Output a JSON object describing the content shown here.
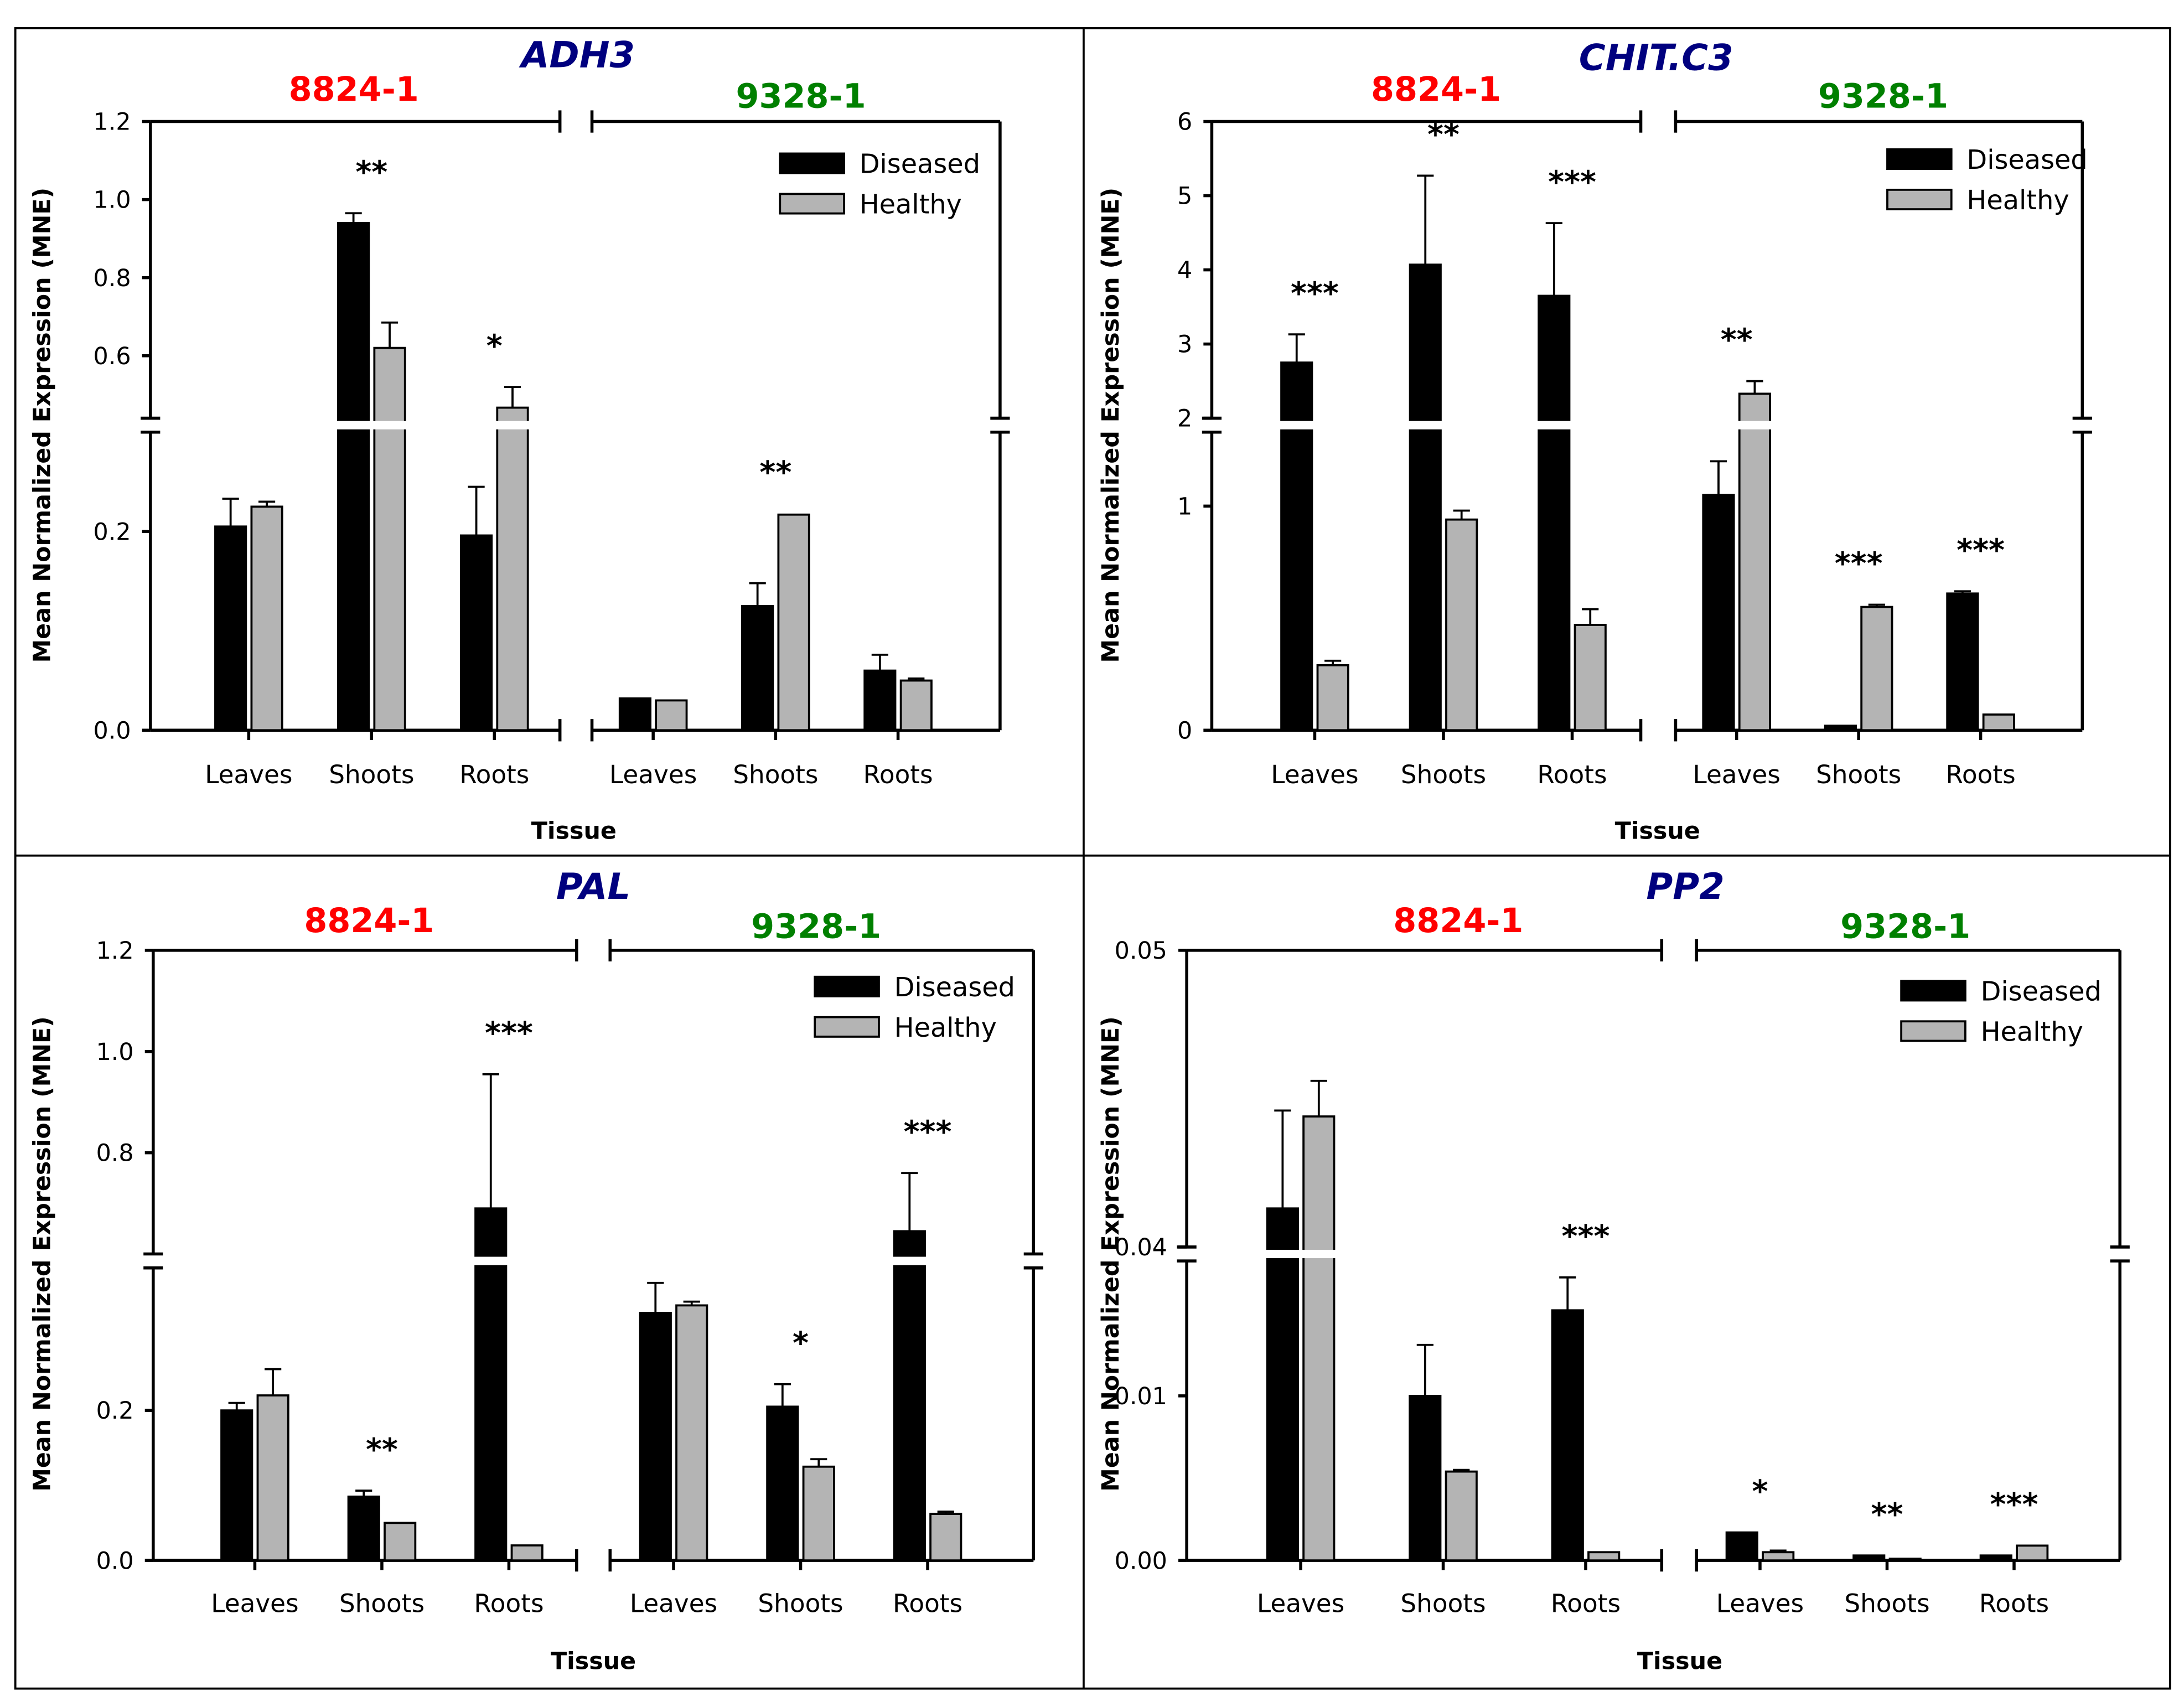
{
  "colors": {
    "diseased": "#000000",
    "healthy": "#b4b4b4",
    "title": "#00007f",
    "group_8824": "#ff0000",
    "group_9328": "#008000"
  },
  "chart_data": [
    {
      "type": "bar",
      "title": "ADH3",
      "ylabel": "Mean Normalized Expression (MNE)",
      "xlabel": "Tissue",
      "groups": [
        {
          "name": "8824-1"
        },
        {
          "name": "9328-1"
        }
      ],
      "categories": [
        "Leaves",
        "Shoots",
        "Roots"
      ],
      "legend": [
        "Diseased",
        "Healthy"
      ],
      "legend_position": "top-right",
      "y_break": {
        "lower": [
          0,
          0.3
        ],
        "upper": [
          0.44,
          1.2
        ]
      },
      "yticks_lower": [
        "0.0",
        "0.2"
      ],
      "yticks_upper": [
        "0.6",
        "0.8",
        "1.0",
        "1.2"
      ],
      "series": [
        {
          "name": "Diseased",
          "values": [
            [
              0.205,
              0.94,
              0.196
            ],
            [
              0.032,
              0.125,
              0.06
            ]
          ],
          "err_top": [
            [
              0.233,
              0.965,
              0.245
            ],
            [
              0.033,
              0.148,
              0.076
            ]
          ]
        },
        {
          "name": "Healthy",
          "values": [
            [
              0.225,
              0.62,
              0.467
            ],
            [
              0.03,
              0.217,
              0.05
            ]
          ],
          "err_top": [
            [
              0.23,
              0.685,
              0.52
            ],
            [
              0.031,
              0.218,
              0.052
            ]
          ]
        }
      ],
      "significance": [
        [
          "",
          "**",
          "*"
        ],
        [
          "",
          "**",
          ""
        ]
      ]
    },
    {
      "type": "bar",
      "title": "CHIT.C3",
      "ylabel": "Mean Normalized Expression (MNE)",
      "xlabel": "Tissue",
      "groups": [
        {
          "name": "8824-1"
        },
        {
          "name": "9328-1"
        }
      ],
      "categories": [
        "Leaves",
        "Shoots",
        "Roots"
      ],
      "legend": [
        "Diseased",
        "Healthy"
      ],
      "legend_position": "top-right",
      "y_break": {
        "lower": [
          0,
          1.33
        ],
        "upper": [
          2,
          6
        ]
      },
      "yticks_lower": [
        "0",
        "1"
      ],
      "yticks_upper": [
        "2",
        "3",
        "4",
        "5",
        "6"
      ],
      "series": [
        {
          "name": "Diseased",
          "values": [
            [
              2.75,
              4.07,
              3.65
            ],
            [
              1.05,
              0.02,
              0.61
            ]
          ],
          "err_top": [
            [
              3.13,
              5.27,
              4.63
            ],
            [
              1.2,
              0.02,
              0.62
            ]
          ]
        },
        {
          "name": "Healthy",
          "values": [
            [
              0.29,
              0.94,
              0.47
            ],
            [
              2.33,
              0.55,
              0.07
            ]
          ],
          "err_top": [
            [
              0.31,
              0.98,
              0.54
            ],
            [
              2.5,
              0.56,
              0.07
            ]
          ]
        }
      ],
      "significance": [
        [
          "***",
          "**",
          "***"
        ],
        [
          "**",
          "***",
          "***"
        ]
      ]
    },
    {
      "type": "bar",
      "title": "PAL",
      "ylabel": "Mean Normalized Expression (MNE)",
      "xlabel": "Tissue",
      "groups": [
        {
          "name": "8824-1"
        },
        {
          "name": "9328-1"
        }
      ],
      "categories": [
        "Leaves",
        "Shoots",
        "Roots"
      ],
      "legend": [
        "Diseased",
        "Healthy"
      ],
      "legend_position": "top-right",
      "y_break": {
        "lower": [
          0,
          0.39
        ],
        "upper": [
          0.6,
          1.2
        ]
      },
      "yticks_lower": [
        "0.0",
        "0.2"
      ],
      "yticks_upper": [
        "0.8",
        "1.0",
        "1.2"
      ],
      "series": [
        {
          "name": "Diseased",
          "values": [
            [
              0.2,
              0.085,
              0.69
            ],
            [
              0.33,
              0.205,
              0.645
            ]
          ],
          "err_top": [
            [
              0.21,
              0.093,
              0.955
            ],
            [
              0.37,
              0.235,
              0.76
            ]
          ]
        },
        {
          "name": "Healthy",
          "values": [
            [
              0.22,
              0.05,
              0.02
            ],
            [
              0.34,
              0.125,
              0.062
            ]
          ],
          "err_top": [
            [
              0.255,
              0.05,
              0.02
            ],
            [
              0.345,
              0.135,
              0.065
            ]
          ]
        }
      ],
      "significance": [
        [
          "",
          "**",
          "***"
        ],
        [
          "",
          "*",
          "***"
        ]
      ]
    },
    {
      "type": "bar",
      "title": "PP2",
      "ylabel": "Mean Normalized Expression (MNE)",
      "xlabel": "Tissue",
      "groups": [
        {
          "name": "8824-1"
        },
        {
          "name": "9328-1"
        }
      ],
      "categories": [
        "Leaves",
        "Shoots",
        "Roots"
      ],
      "legend": [
        "Diseased",
        "Healthy"
      ],
      "legend_position": "top-right",
      "y_break": {
        "lower": [
          0,
          0.0182
        ],
        "upper": [
          0.04,
          0.05
        ]
      },
      "yticks_lower": [
        "0.00",
        "0.01"
      ],
      "yticks_upper": [
        "0.04",
        "0.05"
      ],
      "series": [
        {
          "name": "Diseased",
          "values": [
            [
              0.0413,
              0.01,
              0.0152
            ],
            [
              0.0017,
              0.0003,
              0.0003
            ]
          ],
          "err_top": [
            [
              0.0446,
              0.0131,
              0.0172
            ],
            [
              0.0017,
              0.0003,
              0.0003
            ]
          ]
        },
        {
          "name": "Healthy",
          "values": [
            [
              0.0444,
              0.0054,
              0.0005
            ],
            [
              0.0005,
              0.0001,
              0.0009
            ]
          ],
          "err_top": [
            [
              0.0456,
              0.0055,
              0.0005
            ],
            [
              0.0006,
              0.0001,
              0.0009
            ]
          ]
        }
      ],
      "significance": [
        [
          "",
          "",
          "***"
        ],
        [
          "*",
          "**",
          "***"
        ]
      ]
    }
  ]
}
